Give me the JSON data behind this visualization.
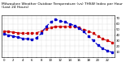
{
  "title": "Milwaukee Weather Outdoor Temperature (vs) THSW Index per Hour (Last 24 Hours)",
  "hours": [
    0,
    1,
    2,
    3,
    4,
    5,
    6,
    7,
    8,
    9,
    10,
    11,
    12,
    13,
    14,
    15,
    16,
    17,
    18,
    19,
    20,
    21,
    22,
    23
  ],
  "temp": [
    47,
    46,
    45,
    44,
    43,
    43,
    43,
    44,
    47,
    51,
    53,
    55,
    55,
    55,
    55,
    55,
    53,
    50,
    47,
    43,
    38,
    33,
    30,
    27
  ],
  "thsw": [
    42,
    40,
    38,
    36,
    34,
    33,
    32,
    35,
    43,
    55,
    63,
    68,
    65,
    63,
    60,
    57,
    52,
    46,
    38,
    30,
    22,
    16,
    12,
    9
  ],
  "temp_color": "#cc0000",
  "thsw_color": "#0000cc",
  "bg_color": "#ffffff",
  "grid_color": "#aaaaaa",
  "ylim": [
    0,
    75
  ],
  "ytick_values": [
    10,
    20,
    30,
    40,
    50,
    60,
    70
  ],
  "ytick_labels": [
    "10",
    "20",
    "30",
    "40",
    "50",
    "60",
    "70"
  ],
  "title_fontsize": 3.2,
  "tick_fontsize": 2.8,
  "line_width": 0.8,
  "marker_size": 1.5
}
